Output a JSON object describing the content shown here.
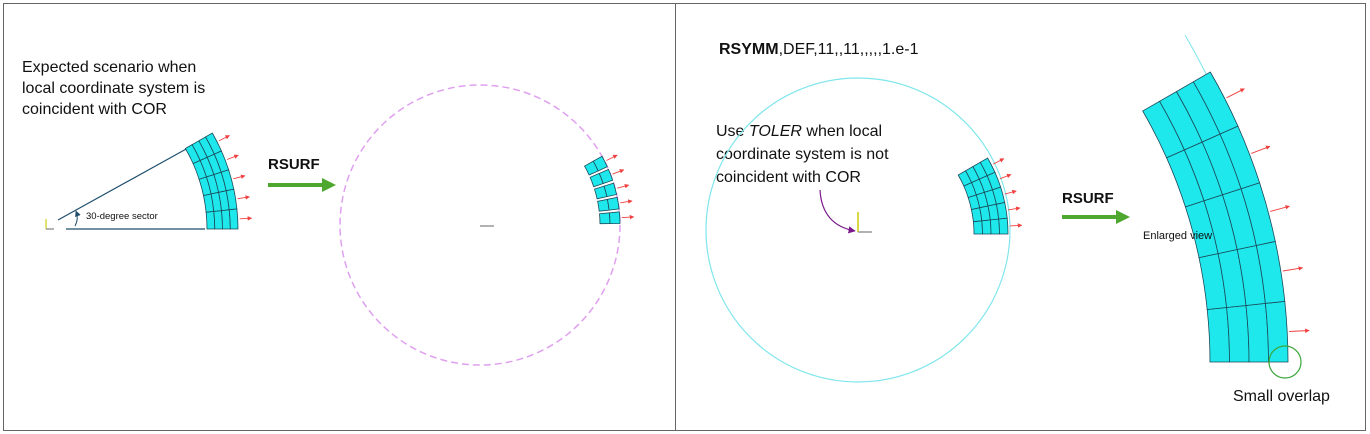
{
  "left_panel": {
    "caption_lines": [
      "Expected scenario when",
      "local coordinate system is",
      "coincident with COR"
    ],
    "sector_label": "30-degree sector",
    "arrow_label": "RSURF"
  },
  "right_panel": {
    "command": {
      "keyword": "RSYMM",
      "args": ",DEF,11,,11,,,,,1.e-1"
    },
    "note": {
      "line1_before": "Use ",
      "line1_emphasis": "TOLER",
      "line1_after": " when local",
      "line2": "coordinate system is not",
      "line3": "coincident with COR"
    },
    "arrow_label": "RSURF",
    "enlarged_label": "Enlarged view",
    "overlap_label": "Small overlap"
  }
}
